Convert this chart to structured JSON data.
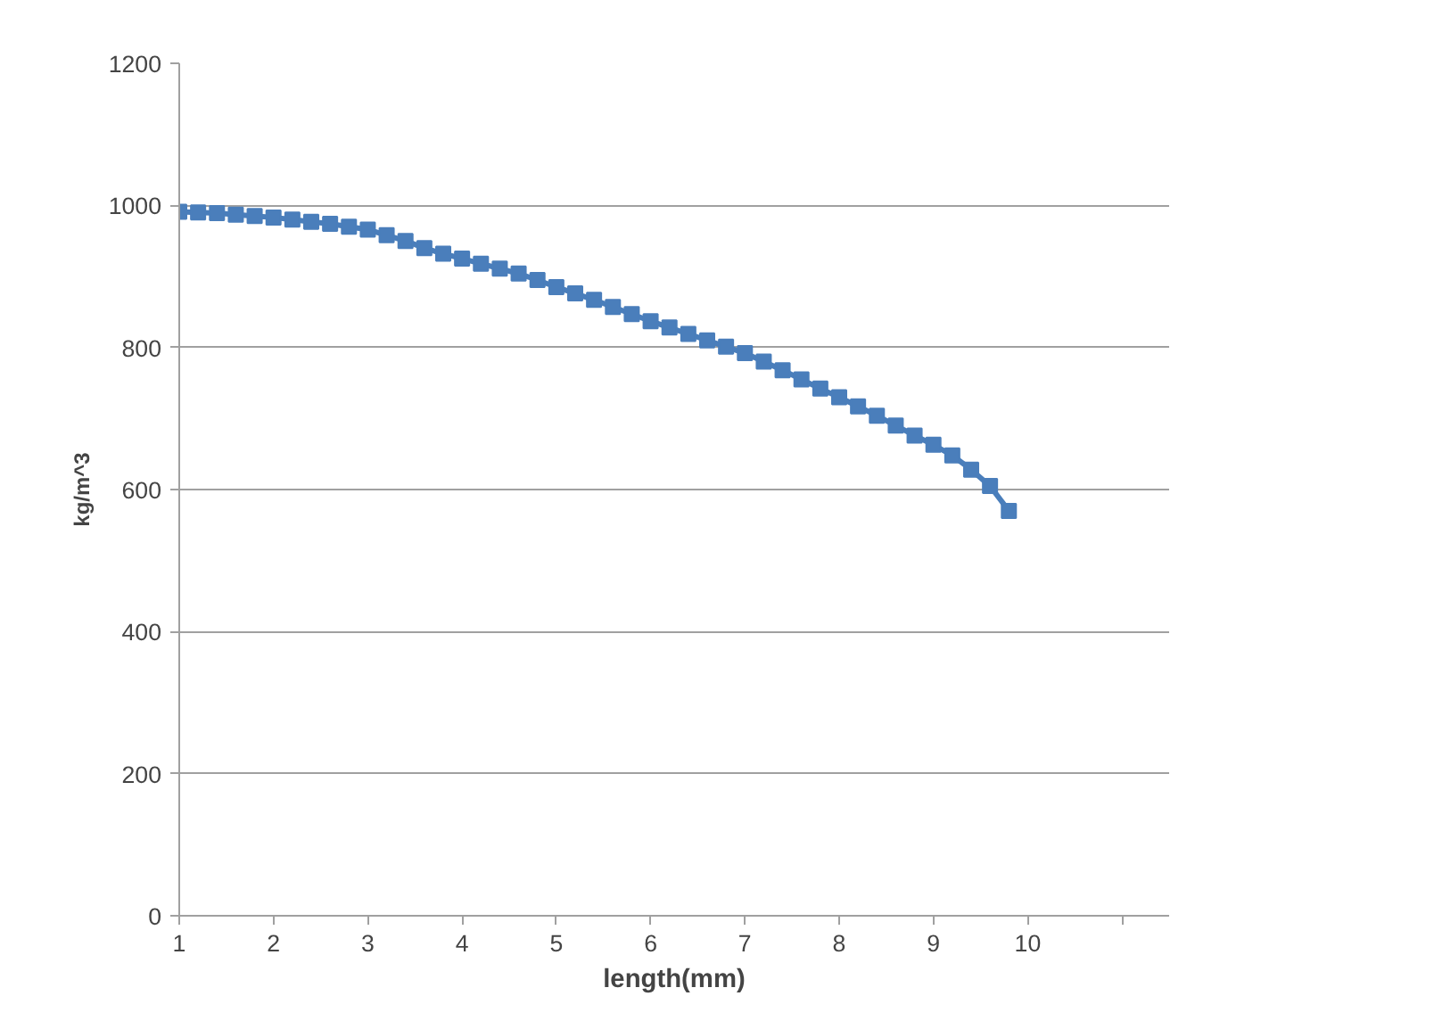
{
  "chart_data": {
    "type": "line",
    "xlabel": "length(mm)",
    "ylabel": "kg/m^3",
    "x": [
      1.0,
      1.2,
      1.4,
      1.6,
      1.8,
      2.0,
      2.2,
      2.4,
      2.6,
      2.8,
      3.0,
      3.2,
      3.4,
      3.6,
      3.8,
      4.0,
      4.2,
      4.4,
      4.6,
      4.8,
      5.0,
      5.2,
      5.4,
      5.6,
      5.8,
      6.0,
      6.2,
      6.4,
      6.6,
      6.8,
      7.0,
      7.2,
      7.4,
      7.6,
      7.8,
      8.0,
      8.2,
      8.4,
      8.6,
      8.8,
      9.0,
      9.2,
      9.4,
      9.6,
      9.8
    ],
    "series": [
      {
        "color": "#4a7ebb",
        "values": [
          991,
          990,
          989,
          987,
          985,
          983,
          980,
          977,
          974,
          970,
          966,
          958,
          950,
          940,
          932,
          925,
          918,
          911,
          904,
          895,
          885,
          876,
          867,
          857,
          847,
          837,
          828,
          819,
          810,
          801,
          792,
          780,
          768,
          755,
          742,
          730,
          717,
          704,
          690,
          676,
          663,
          648,
          628,
          605,
          570
        ]
      }
    ],
    "xlim": [
      1,
      11.5
    ],
    "xticks": [
      1,
      2,
      3,
      4,
      5,
      6,
      7,
      8,
      9,
      10,
      {
        "value": 11,
        "label": null
      }
    ],
    "ylim": [
      0,
      1200
    ],
    "yticks": [
      0,
      200,
      400,
      600,
      800,
      1000,
      1200
    ],
    "grid": "y",
    "marker": "square",
    "line_style": "solid"
  }
}
